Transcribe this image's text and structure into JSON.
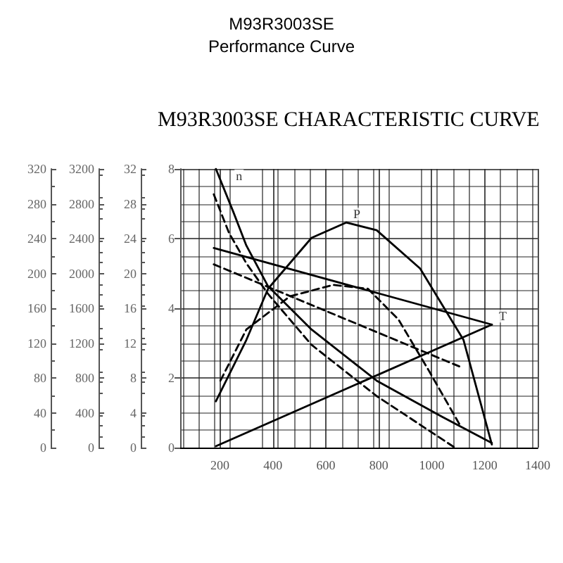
{
  "chart_data": {
    "type": "line",
    "title": "M93R3003SE",
    "subtitle": "Performance Curve",
    "annotations": [
      "M93R3003SE CHARACTERISTIC CURVE",
      {
        "text": "n",
        "x": 234,
        "y": 7.56
      },
      {
        "text": "P",
        "x": 677,
        "y": 6.46
      },
      {
        "text": "T",
        "x": 1227,
        "y": 3.53
      },
      "0",
      "40",
      "80",
      "120",
      "160",
      "200",
      "240",
      "280",
      "320"
    ],
    "xlim": [
      50,
      1400
    ],
    "xticks": [
      200,
      400,
      600,
      800,
      1000,
      1200,
      1400
    ],
    "ylim": [
      0,
      8
    ],
    "yticks": [
      0,
      2,
      4,
      6,
      8
    ],
    "y2lim": [
      0,
      32
    ],
    "y2ticks": [
      0,
      4,
      8,
      12,
      16,
      20,
      24,
      28,
      32
    ],
    "y3lim": [
      0,
      3200
    ],
    "y3ticks": [
      0,
      400,
      800,
      1200,
      1600,
      2000,
      2400,
      2800,
      3200
    ],
    "grid": true,
    "marker": "none",
    "series": [
      {
        "color": "#000000",
        "line_style": "solid",
        "x": [
          185,
          251,
          300,
          382,
          546,
          792,
          1038,
          1227
        ],
        "values": [
          8.0,
          6.76,
          5.8,
          4.63,
          3.39,
          1.92,
          0.89,
          0.13
        ]
      },
      {
        "color": "#000000",
        "line_style": "dashed",
        "x": [
          177,
          234,
          300,
          382,
          546,
          792,
          1087
        ],
        "values": [
          7.27,
          6.17,
          5.29,
          4.41,
          2.95,
          1.48,
          0.0
        ]
      },
      {
        "color": "#000000",
        "line_style": "solid",
        "x": [
          177,
          1227
        ],
        "values": [
          5.73,
          3.53
        ]
      },
      {
        "color": "#000000",
        "line_style": "dashed",
        "x": [
          177,
          1104
        ],
        "values": [
          5.26,
          2.33
        ]
      },
      {
        "color": "#000000",
        "line_style": "solid",
        "x": [
          185,
          300,
          382,
          546,
          677,
          792,
          956,
          1120,
          1227
        ],
        "values": [
          1.33,
          3.09,
          4.56,
          6.02,
          6.46,
          6.24,
          5.14,
          3.09,
          0.09
        ]
      },
      {
        "color": "#000000",
        "line_style": "dashed",
        "x": [
          202,
          300,
          464,
          628,
          759,
          874,
          989,
          1104
        ],
        "values": [
          1.92,
          3.39,
          4.34,
          4.67,
          4.56,
          3.68,
          2.21,
          0.68
        ]
      },
      {
        "color": "#000000",
        "line_style": "solid",
        "x": [
          185,
          1227
        ],
        "values": [
          0.04,
          3.53
        ]
      }
    ]
  }
}
